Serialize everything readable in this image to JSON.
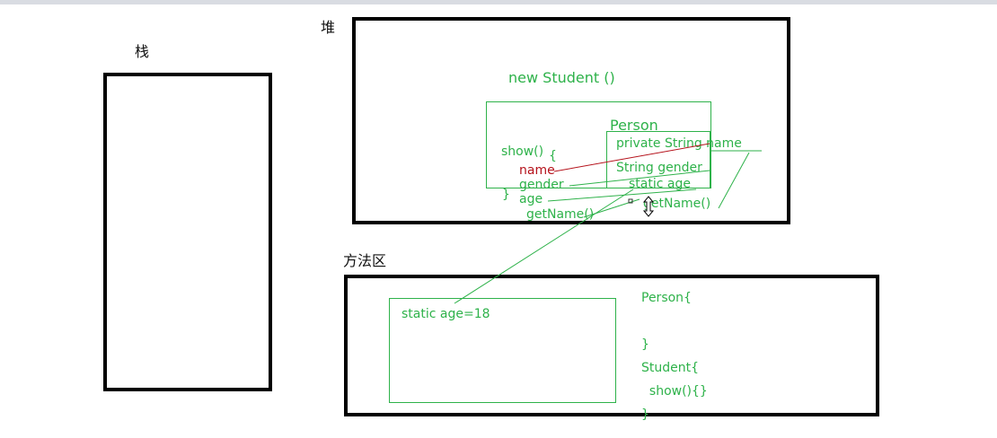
{
  "labels": {
    "stack": "栈",
    "heap": "堆",
    "method_area": "方法区"
  },
  "heap": {
    "new_student": "new Student  ()",
    "person_title": "Person",
    "person_fields": {
      "private_name": "private   String name",
      "string_gender": "String gender",
      "static_age": "static age",
      "get_name": "getName()"
    },
    "show": {
      "header": "show()",
      "open_brace": "{",
      "name": "name",
      "gender": "gender",
      "age": "age",
      "get_name": "getName()",
      "close_brace": "}"
    }
  },
  "method_area": {
    "static_box": "static  age=18",
    "code_lines": [
      "Person{",
      "",
      "}",
      "Student{",
      "  show(){}",
      "}"
    ]
  },
  "colors": {
    "green": "#2eb24a",
    "red": "#b5121b",
    "black": "#000000"
  },
  "icons": {
    "cursor": "resize-vertical-cursor-icon"
  }
}
